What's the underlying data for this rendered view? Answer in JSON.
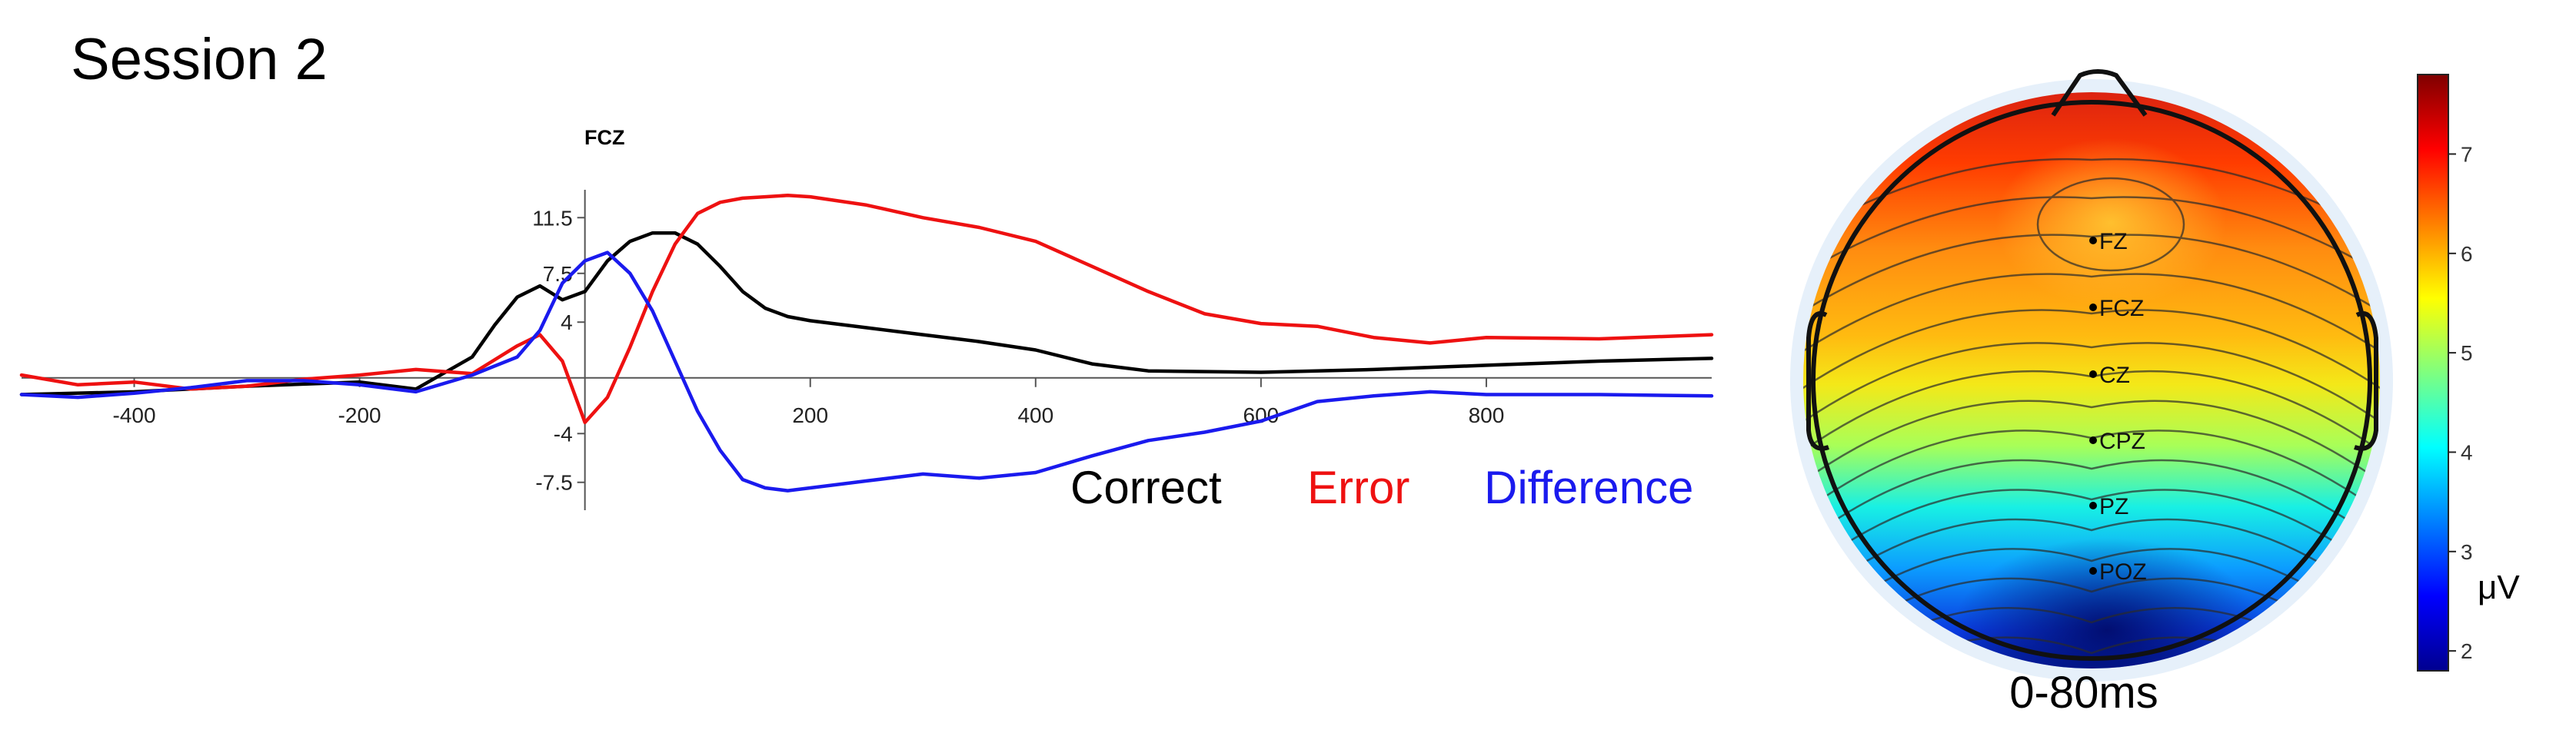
{
  "page_title": "Session 2",
  "chart_data": [
    {
      "type": "line",
      "title": "FCZ",
      "xlabel": "",
      "ylabel": "",
      "xlim": [
        -500,
        1000
      ],
      "ylim": [
        -9.5,
        13.5
      ],
      "x_ticks": [
        -400,
        -200,
        200,
        400,
        600,
        800
      ],
      "y_ticks": [
        11.5,
        7.5,
        4,
        -4,
        -7.5
      ],
      "grid": false,
      "legend_position": "bottom-right",
      "series": [
        {
          "name": "Correct",
          "color": "#000000",
          "x": [
            -500,
            -400,
            -300,
            -200,
            -150,
            -100,
            -80,
            -60,
            -40,
            -20,
            0,
            20,
            40,
            60,
            80,
            100,
            120,
            140,
            160,
            180,
            200,
            250,
            300,
            350,
            400,
            450,
            500,
            600,
            700,
            800,
            900,
            1000
          ],
          "y": [
            -1.2,
            -1.0,
            -0.6,
            -0.3,
            -0.8,
            1.5,
            3.8,
            5.8,
            6.6,
            5.6,
            6.2,
            8.4,
            9.8,
            10.4,
            10.4,
            9.6,
            8.0,
            6.2,
            5.0,
            4.4,
            4.1,
            3.6,
            3.1,
            2.6,
            2.0,
            1.0,
            0.5,
            0.4,
            0.6,
            0.9,
            1.2,
            1.4
          ]
        },
        {
          "name": "Error",
          "color": "#ee1111",
          "x": [
            -500,
            -450,
            -400,
            -350,
            -300,
            -250,
            -200,
            -150,
            -100,
            -60,
            -40,
            -20,
            0,
            20,
            40,
            60,
            80,
            100,
            120,
            140,
            160,
            180,
            200,
            250,
            300,
            350,
            400,
            450,
            500,
            550,
            600,
            650,
            700,
            750,
            800,
            900,
            1000
          ],
          "y": [
            0.2,
            -0.5,
            -0.3,
            -0.8,
            -0.6,
            -0.1,
            0.2,
            0.6,
            0.3,
            2.3,
            3.1,
            1.2,
            -3.2,
            -1.4,
            2.2,
            6.2,
            9.6,
            11.8,
            12.6,
            12.9,
            13.0,
            13.1,
            13.0,
            12.4,
            11.5,
            10.8,
            9.8,
            8.0,
            6.2,
            4.6,
            3.9,
            3.7,
            2.9,
            2.5,
            2.9,
            2.8,
            3.1
          ]
        },
        {
          "name": "Difference",
          "color": "#1a1aee",
          "x": [
            -500,
            -450,
            -400,
            -350,
            -300,
            -250,
            -200,
            -150,
            -100,
            -60,
            -40,
            -20,
            0,
            20,
            40,
            60,
            80,
            100,
            120,
            140,
            160,
            180,
            200,
            250,
            300,
            350,
            400,
            450,
            500,
            550,
            600,
            650,
            700,
            750,
            800,
            900,
            1000
          ],
          "y": [
            -1.2,
            -1.4,
            -1.1,
            -0.7,
            -0.2,
            -0.2,
            -0.5,
            -1.0,
            0.2,
            1.5,
            3.4,
            6.8,
            8.4,
            9.0,
            7.5,
            4.8,
            1.2,
            -2.4,
            -5.2,
            -7.3,
            -7.9,
            -8.1,
            -7.9,
            -7.4,
            -6.9,
            -7.2,
            -6.8,
            -5.6,
            -4.5,
            -3.9,
            -3.1,
            -1.7,
            -1.3,
            -1.0,
            -1.2,
            -1.2,
            -1.3
          ]
        }
      ]
    },
    {
      "type": "heatmap",
      "subtype": "scalp-topography",
      "title": "0-80ms",
      "colorbar_label": "μV",
      "colorbar_ticks": [
        2,
        3,
        4,
        5,
        6,
        7
      ],
      "colorbar_range": [
        1.8,
        7.8
      ],
      "colormap": "jet",
      "electrodes": [
        {
          "name": "FZ",
          "value": 6.6
        },
        {
          "name": "FCZ",
          "value": 6.5
        },
        {
          "name": "CZ",
          "value": 5.6
        },
        {
          "name": "CPZ",
          "value": 4.4
        },
        {
          "name": "PZ",
          "value": 3.3
        },
        {
          "name": "POZ",
          "value": 2.4
        }
      ]
    }
  ]
}
